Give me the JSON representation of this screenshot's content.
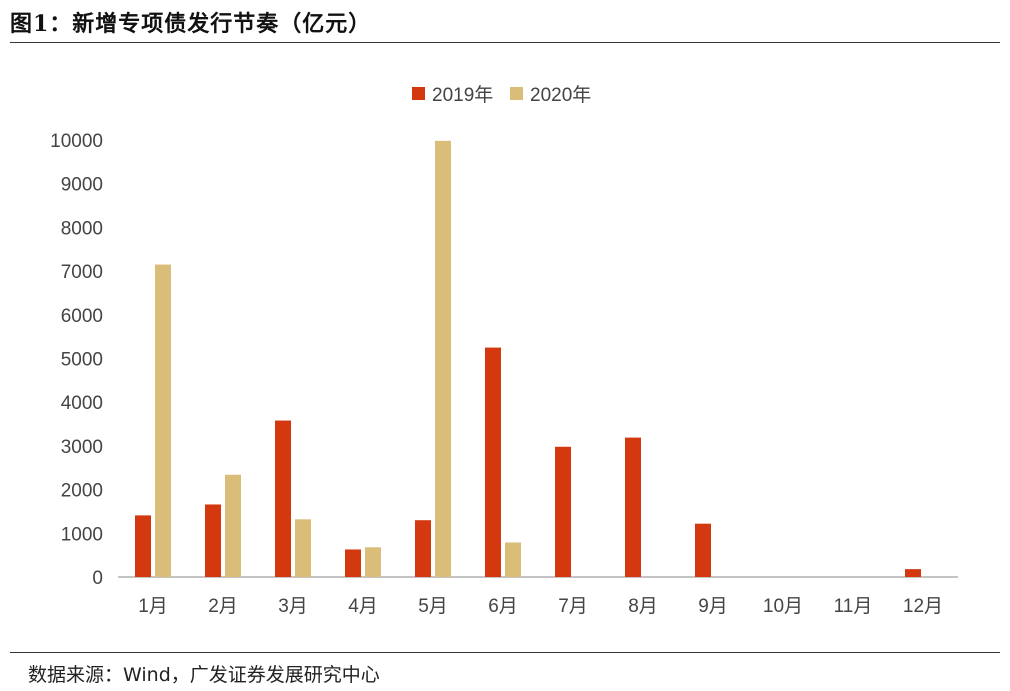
{
  "figure_title": "图1：新增专项债发行节奏（亿元）",
  "source_text": "数据来源：Wind，广发证券发展研究中心",
  "colors": {
    "2019年": "#d3380e",
    "2020年": "#d9bd78",
    "axis": "#b0b0b0"
  },
  "chart_data": {
    "type": "bar",
    "title": "",
    "xlabel": "",
    "ylabel": "",
    "ylim": [
      0,
      10000
    ],
    "yticks": [
      0,
      1000,
      2000,
      3000,
      4000,
      5000,
      6000,
      7000,
      8000,
      9000,
      10000
    ],
    "grid": false,
    "legend_position": "top-center",
    "categories": [
      "1月",
      "2月",
      "3月",
      "4月",
      "5月",
      "6月",
      "7月",
      "8月",
      "9月",
      "10月",
      "11月",
      "12月"
    ],
    "series": [
      {
        "name": "2019年",
        "values": [
          1410,
          1660,
          3580,
          630,
          1300,
          5250,
          2980,
          3190,
          1220,
          0,
          0,
          180
        ]
      },
      {
        "name": "2020年",
        "values": [
          7150,
          2340,
          1320,
          680,
          9980,
          790,
          null,
          null,
          null,
          null,
          null,
          null
        ]
      }
    ]
  }
}
